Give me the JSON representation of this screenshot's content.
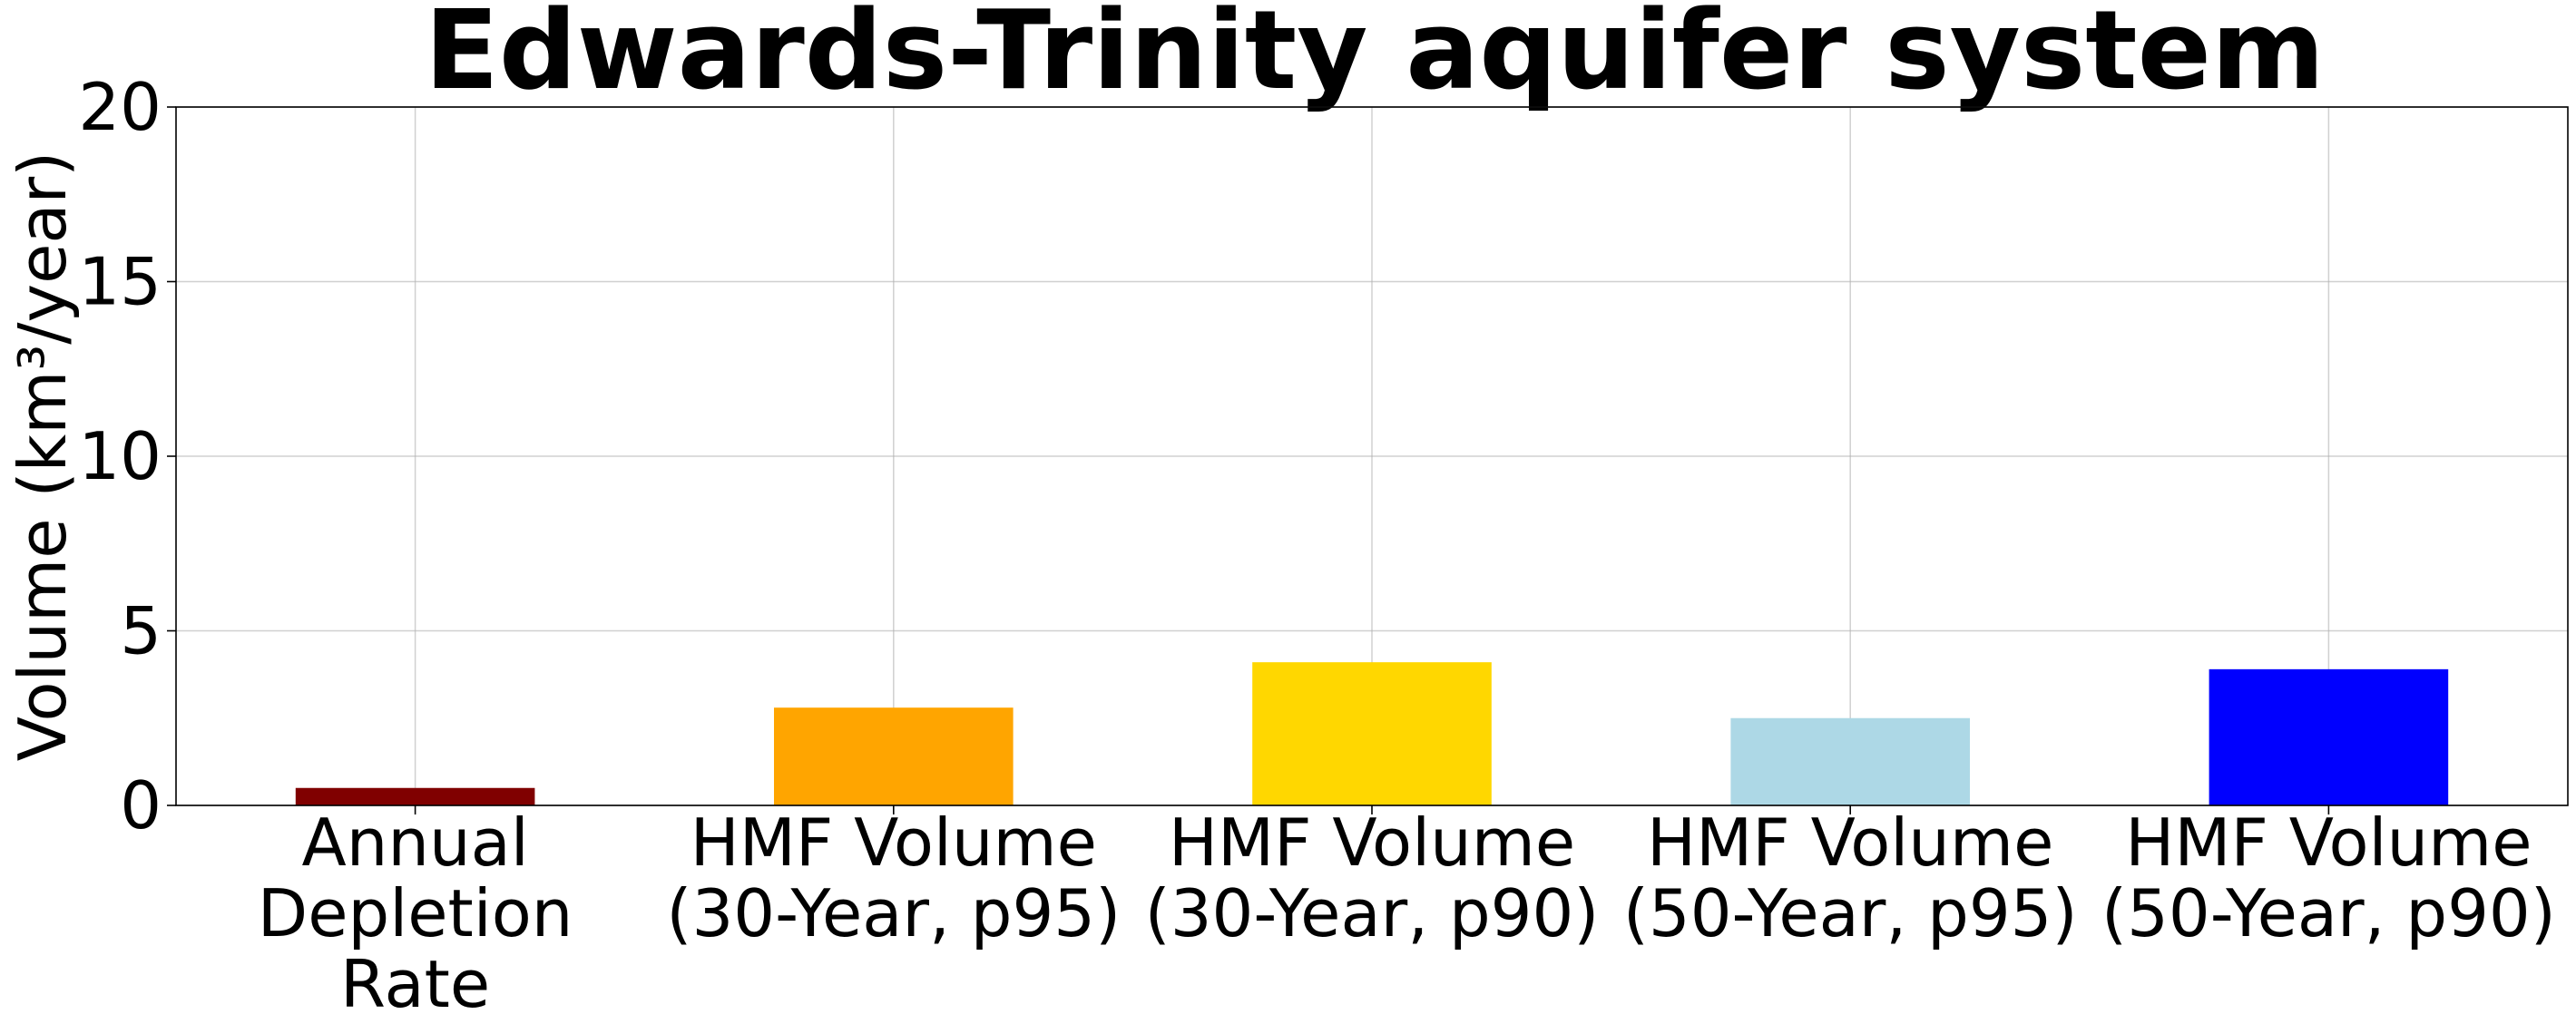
{
  "chart_data": {
    "type": "bar",
    "title": "Edwards-Trinity aquifer system",
    "ylabel": "Volume (km³/year)",
    "xlabel": "",
    "categories": [
      [
        "Annual",
        "Depletion",
        "Rate"
      ],
      [
        "HMF Volume",
        "(30-Year, p95)"
      ],
      [
        "HMF Volume",
        "(30-Year, p90)"
      ],
      [
        "HMF Volume",
        "(50-Year, p95)"
      ],
      [
        "HMF Volume",
        "(50-Year, p90)"
      ]
    ],
    "values": [
      0.5,
      2.8,
      4.1,
      2.5,
      3.9
    ],
    "colors": [
      "#800000",
      "#FFA500",
      "#FFD700",
      "#ADD8E6",
      "#0000FF"
    ],
    "ylim": [
      0,
      20
    ],
    "yticks": [
      0,
      5,
      10,
      15,
      20
    ],
    "grid": true
  }
}
